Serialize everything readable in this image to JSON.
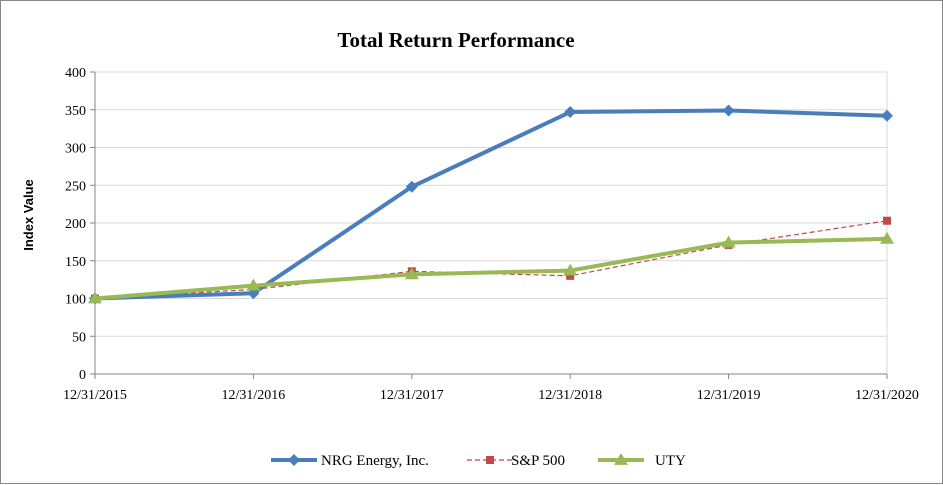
{
  "chart_data": {
    "type": "line",
    "title": "Total Return Performance",
    "xlabel": "",
    "ylabel": "Index Value",
    "categories": [
      "12/31/2015",
      "12/31/2016",
      "12/31/2017",
      "12/31/2018",
      "12/31/2019",
      "12/31/2020"
    ],
    "ylim": [
      0,
      400
    ],
    "yticks": [
      0,
      50,
      100,
      150,
      200,
      250,
      300,
      350,
      400
    ],
    "grid": true,
    "legend": "bottom",
    "series": [
      {
        "name": "NRG Energy, Inc.",
        "values": [
          100,
          107,
          248,
          347,
          349,
          342
        ],
        "color": "#4a7ebb",
        "marker": "diamond",
        "line": "solid"
      },
      {
        "name": "S&P 500",
        "values": [
          100,
          112,
          136,
          130,
          171,
          203
        ],
        "color": "#be4b48",
        "marker": "square",
        "line": "dashed"
      },
      {
        "name": "UTY",
        "values": [
          100,
          117,
          132,
          137,
          174,
          179
        ],
        "color": "#98b954",
        "marker": "triangle",
        "line": "solid"
      }
    ]
  }
}
